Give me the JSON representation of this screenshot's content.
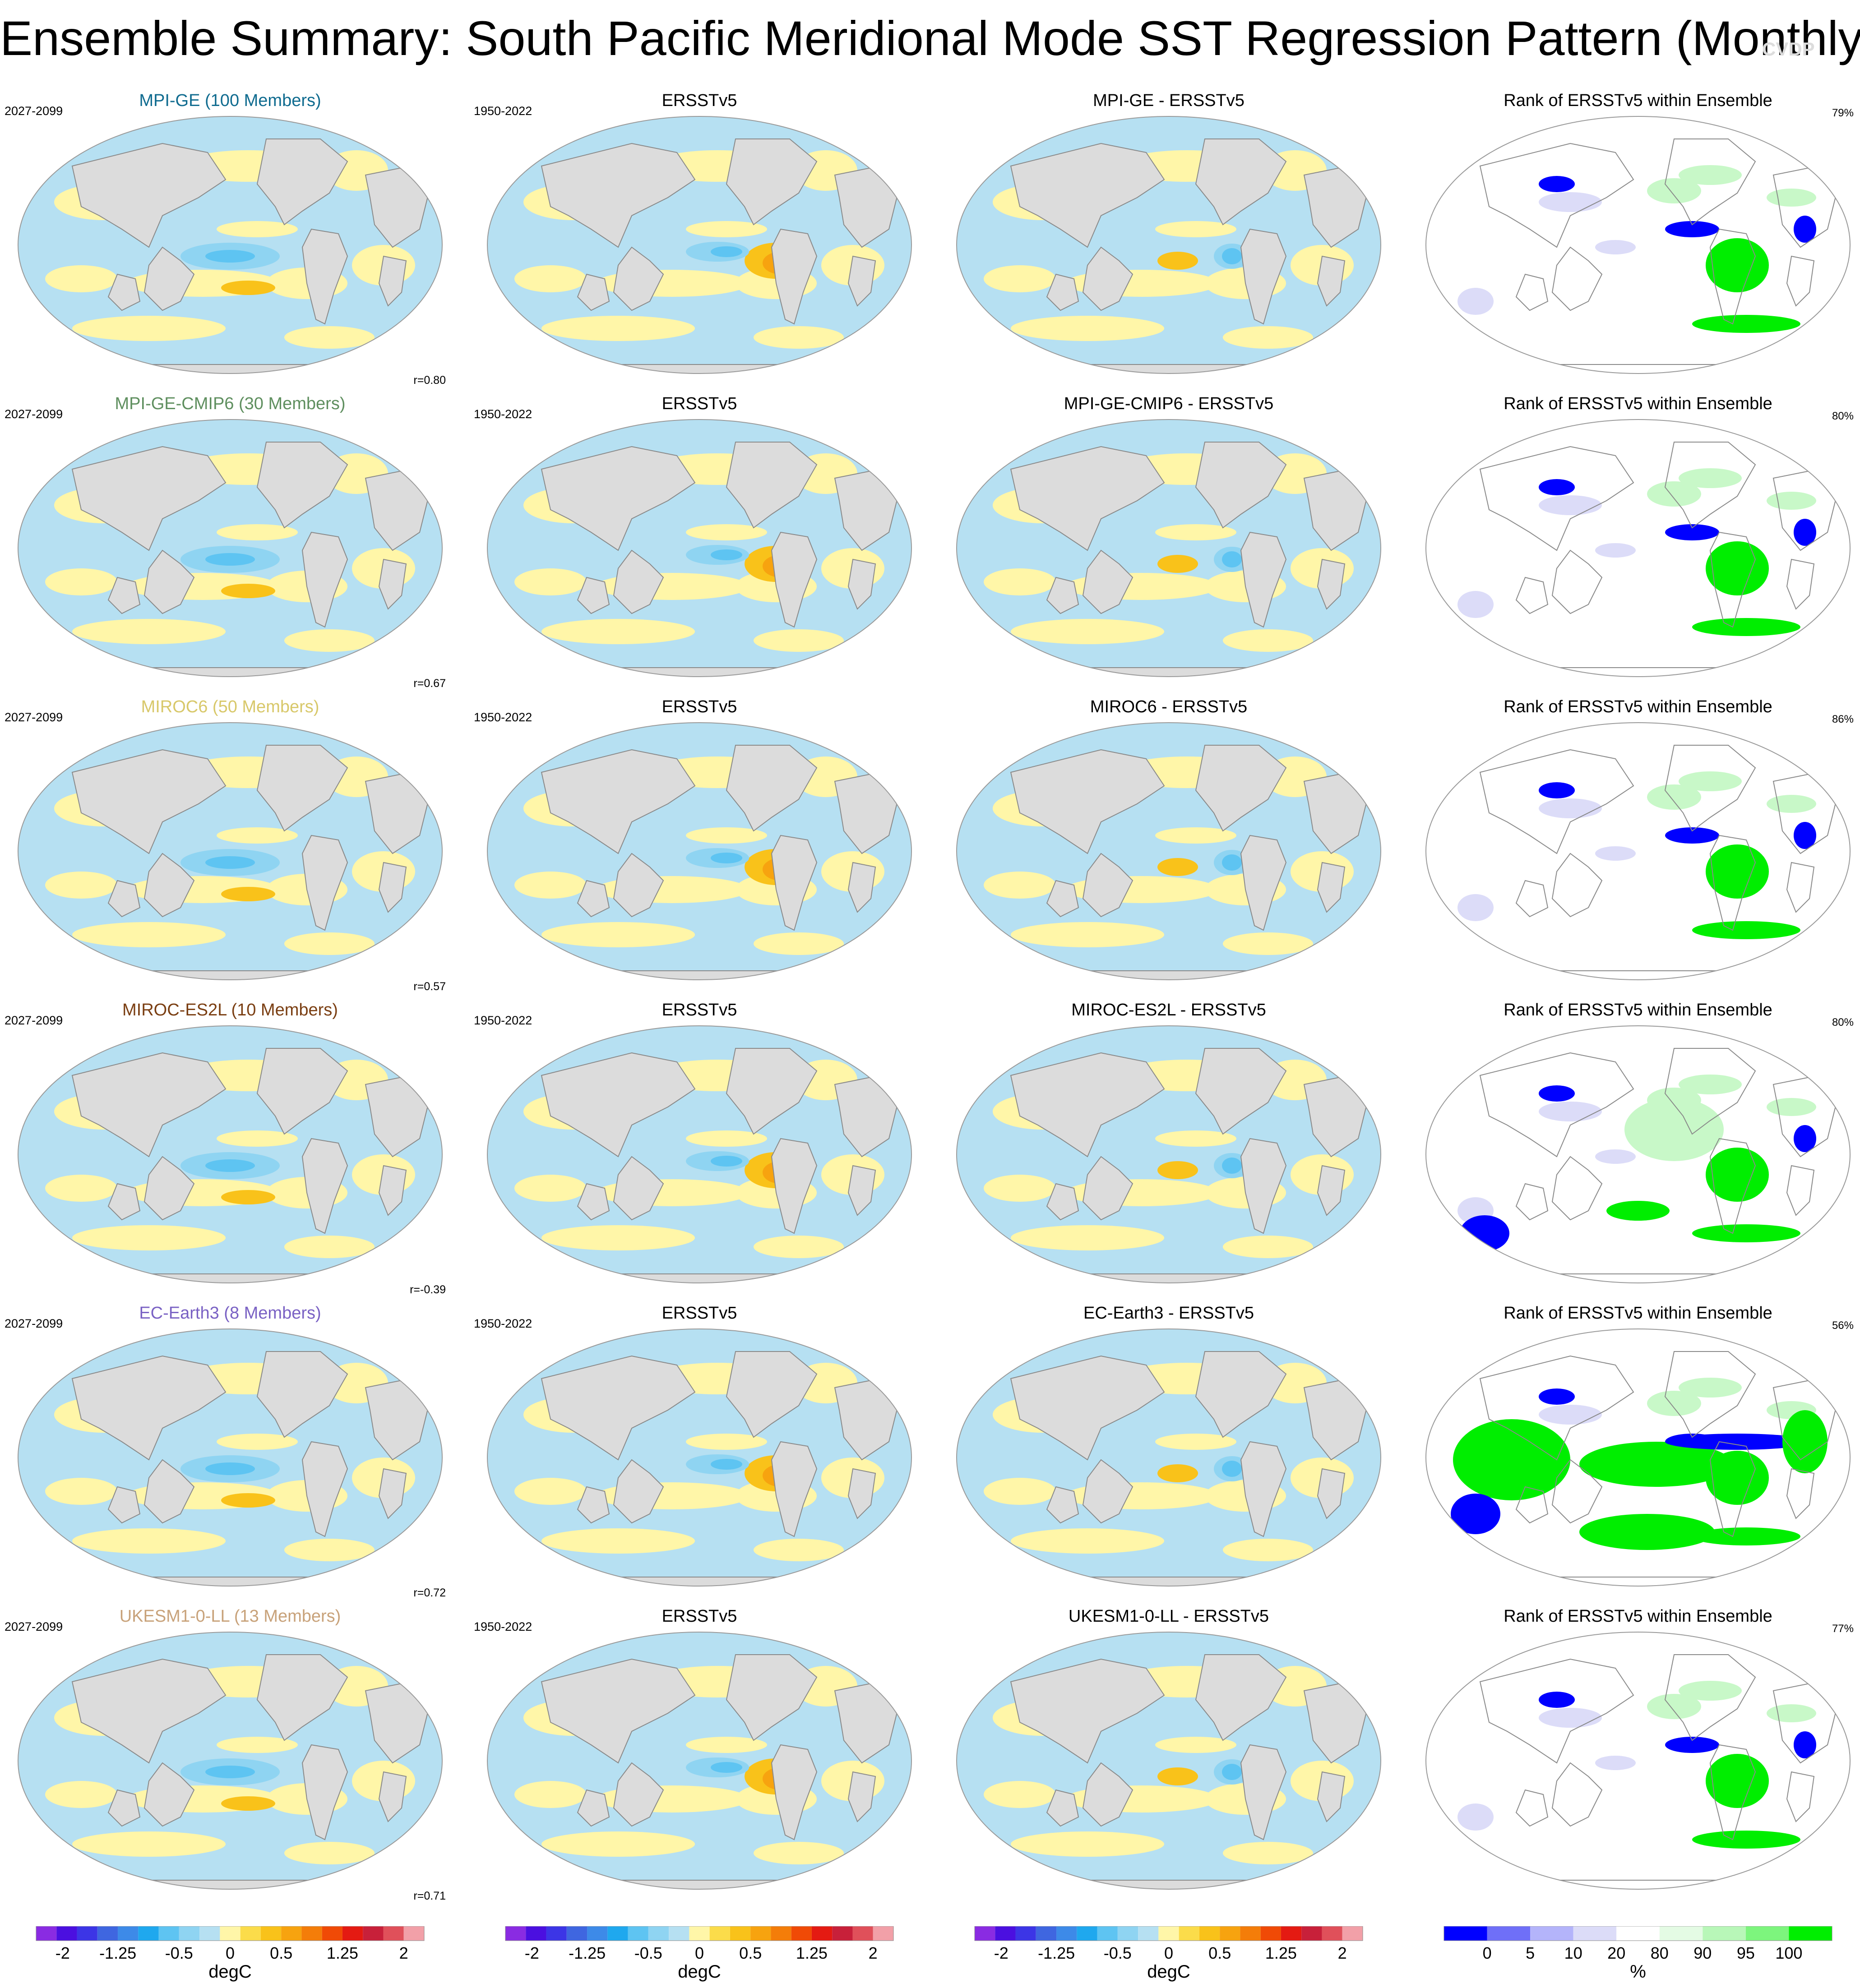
{
  "title": "Ensemble Summary: South Pacific Meridional Mode SST Regression Pattern (Monthly)",
  "watermark": "CVDP",
  "obs_label": "ERSSTv5",
  "obs_period": "1950-2022",
  "rank_title": "Rank of ERSSTv5 within Ensemble",
  "rows": [
    {
      "model_title": "MPI-GE (100 Members)",
      "title_color": "#0f6b8f",
      "period": "2027-2099",
      "diff_title": "MPI-GE - ERSSTv5",
      "correlation": "r=0.80",
      "rank_pct": "79%"
    },
    {
      "model_title": "MPI-GE-CMIP6 (30 Members)",
      "title_color": "#5f8f5f",
      "period": "2027-2099",
      "diff_title": "MPI-GE-CMIP6 - ERSSTv5",
      "correlation": "r=0.67",
      "rank_pct": "80%"
    },
    {
      "model_title": "MIROC6 (50 Members)",
      "title_color": "#d8c86a",
      "period": "2027-2099",
      "diff_title": "MIROC6 - ERSSTv5",
      "correlation": "r=0.57",
      "rank_pct": "86%"
    },
    {
      "model_title": "MIROC-ES2L (10 Members)",
      "title_color": "#7a3e12",
      "period": "2027-2099",
      "diff_title": "MIROC-ES2L - ERSSTv5",
      "correlation": "r=-0.39",
      "rank_pct": "80%"
    },
    {
      "model_title": "EC-Earth3 (8 Members)",
      "title_color": "#7a62c4",
      "period": "2027-2099",
      "diff_title": "EC-Earth3 - ERSSTv5",
      "correlation": "r=0.72",
      "rank_pct": "56%"
    },
    {
      "model_title": "UKESM1-0-LL (13 Members)",
      "title_color": "#c8a27a",
      "period": "2027-2099",
      "diff_title": "UKESM1-0-LL - ERSSTv5",
      "correlation": "r=0.71",
      "rank_pct": "77%"
    }
  ],
  "colorbar_sst": {
    "unit": "degC",
    "tick_labels": [
      "-2",
      "-1.25",
      "-0.5",
      "0",
      "0.5",
      "1.25",
      "2"
    ],
    "colors": [
      "#8a2be2",
      "#4b0fe0",
      "#3c35e6",
      "#3f66e0",
      "#3d8ae8",
      "#1fa8ee",
      "#5ec4f2",
      "#8fd4f2",
      "#b6e0f2",
      "#fff6a8",
      "#fbdc4a",
      "#f9c21a",
      "#f7a30f",
      "#f47d09",
      "#f04a06",
      "#e41a12",
      "#c8203a",
      "#e0505a",
      "#f2a0a8"
    ]
  },
  "colorbar_rank": {
    "unit": "%",
    "tick_labels": [
      "0",
      "5",
      "10",
      "20",
      "80",
      "90",
      "95",
      "100"
    ],
    "colors": [
      "#0000ff",
      "#6f6ff8",
      "#b4b4fa",
      "#dcdcf8",
      "#ffffff",
      "#e4fbe4",
      "#b8f7b8",
      "#7df57d",
      "#00ee00"
    ]
  },
  "map_colors": {
    "land": "#dcdcdc",
    "coast": "#8a8a8a",
    "ocean_neg": "#b6e0f2",
    "ocean_pos": "#fff6a8",
    "neg_mid": "#8fd4f2",
    "neg_strong": "#5ec4f2",
    "pos_mid": "#f9c21a",
    "pos_strong": "#f7a30f",
    "rank_low": "#0000ff",
    "rank_low_light": "#dcdcf8",
    "rank_high": "#00ee00",
    "rank_high_light": "#c8f8c8"
  }
}
